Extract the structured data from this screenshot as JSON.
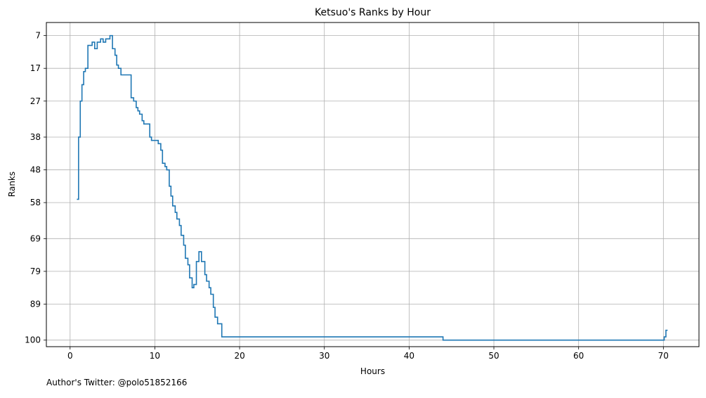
{
  "chart_data": {
    "type": "line",
    "drawstyle": "steps-post",
    "title": "Ketsuo's Ranks by Hour",
    "xlabel": "Hours",
    "ylabel": "Ranks",
    "xlim": [
      -2.8,
      74.2
    ],
    "ylim": [
      102,
      3
    ],
    "y_inverted": true,
    "xticks": [
      0,
      10,
      20,
      30,
      40,
      50,
      60,
      70
    ],
    "xtick_labels": [
      "0",
      "10",
      "20",
      "30",
      "40",
      "50",
      "60",
      "70"
    ],
    "yticks": [
      7,
      17,
      27,
      38,
      48,
      58,
      69,
      79,
      89,
      100
    ],
    "ytick_labels": [
      "7",
      "17",
      "27",
      "38",
      "48",
      "58",
      "69",
      "79",
      "89",
      "100"
    ],
    "grid": true,
    "line_color": "#1f77b4",
    "series": [
      {
        "x": [
          0.8,
          1.0,
          1.2,
          1.4,
          1.6,
          1.8,
          2.1,
          2.6,
          2.9,
          3.2,
          3.6,
          3.9,
          4.2,
          4.7,
          5.0,
          5.3,
          5.5,
          5.7,
          6.0,
          6.2,
          7.2,
          7.5,
          7.8,
          8.0,
          8.2,
          8.5,
          8.7,
          9.0,
          9.4,
          9.6,
          10.2,
          10.4,
          10.7,
          10.9,
          11.2,
          11.4,
          11.7,
          11.9,
          12.1,
          12.4,
          12.6,
          12.9,
          13.1,
          13.4,
          13.6,
          13.9,
          14.1,
          14.4,
          14.6,
          14.9,
          15.2,
          15.5,
          15.9,
          16.1,
          16.4,
          16.6,
          16.9,
          17.1,
          17.4,
          17.9,
          44.0,
          70.1,
          70.3,
          70.5
        ],
        "y": [
          57,
          38,
          27,
          22,
          18,
          17,
          10,
          9,
          11,
          9,
          8,
          9,
          8,
          7,
          11,
          13,
          16,
          17,
          19,
          19,
          26,
          27,
          29,
          30,
          31,
          33,
          34,
          34,
          38,
          39,
          39,
          40,
          42,
          46,
          47,
          48,
          53,
          56,
          59,
          61,
          63,
          65,
          68,
          71,
          75,
          77,
          81,
          84,
          83,
          76,
          73,
          76,
          80,
          82,
          84,
          86,
          90,
          93,
          95,
          99,
          100,
          99,
          97,
          97
        ]
      }
    ]
  },
  "footer": {
    "author_note": "Author's Twitter: @polo51852166"
  }
}
